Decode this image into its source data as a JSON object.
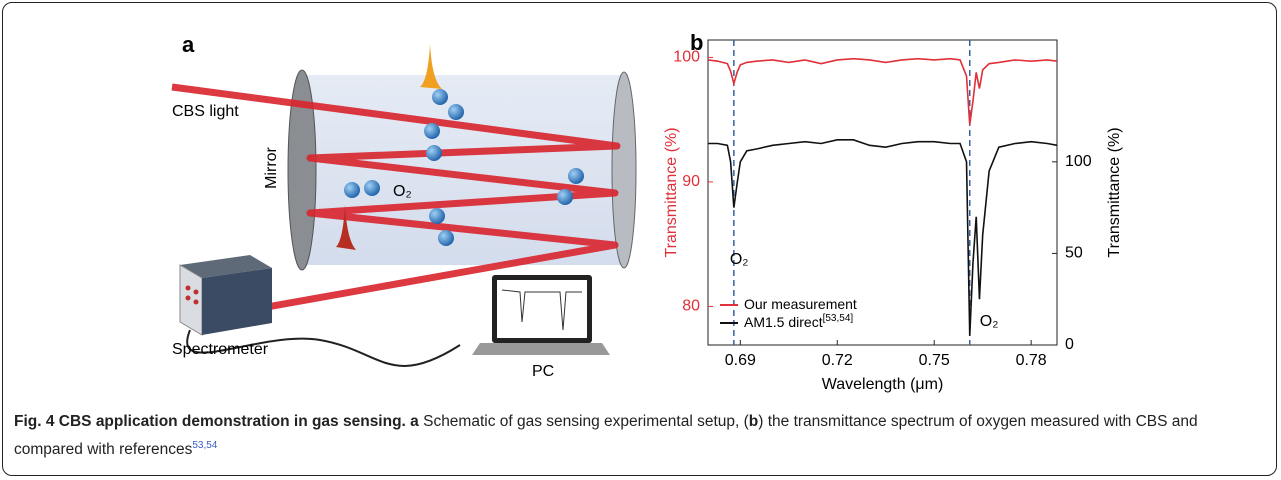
{
  "panel_a": {
    "label": "a",
    "cbs_light": "CBS light",
    "mirror": "Mirror",
    "molecule": "O₂",
    "spectrometer": "Spectrometer",
    "pc": "PC"
  },
  "chart_data": {
    "type": "line",
    "panel_label": "b",
    "x_label": "Wavelength (μm)",
    "y_label": "Transmittance (%)",
    "y2_label": "Transmittance (%)",
    "x": [
      0.68,
      0.683,
      0.686,
      0.687,
      0.688,
      0.689,
      0.69,
      0.692,
      0.695,
      0.7,
      0.705,
      0.71,
      0.715,
      0.72,
      0.725,
      0.73,
      0.735,
      0.74,
      0.745,
      0.75,
      0.755,
      0.758,
      0.76,
      0.761,
      0.762,
      0.763,
      0.764,
      0.765,
      0.767,
      0.77,
      0.775,
      0.78,
      0.785,
      0.788
    ],
    "series": [
      {
        "name": "Our measurement",
        "color": "#e0303a",
        "axis": "y",
        "values": [
          99.8,
          99.7,
          99.5,
          98.9,
          97.9,
          98.8,
          99.4,
          99.6,
          99.7,
          99.8,
          99.6,
          99.8,
          99.5,
          99.8,
          99.9,
          99.8,
          99.6,
          99.8,
          99.9,
          99.8,
          99.9,
          99.8,
          98.5,
          94.6,
          96.5,
          98.8,
          97.5,
          99.0,
          99.5,
          99.6,
          99.8,
          99.7,
          99.8,
          99.7
        ]
      },
      {
        "name": "AM1.5 direct",
        "name_superscript": "[53,54]",
        "color": "#111111",
        "axis": "y2",
        "values": [
          110,
          110,
          109,
          100,
          75,
          88,
          100,
          106,
          107,
          109,
          110,
          111,
          110,
          112,
          112,
          109,
          108,
          110,
          111,
          111,
          110,
          110,
          100,
          5,
          45,
          70,
          25,
          60,
          95,
          108,
          110,
          111,
          110,
          109
        ]
      }
    ],
    "xlim": [
      0.68,
      0.788
    ],
    "xticks": [
      0.69,
      0.72,
      0.75,
      0.78
    ],
    "ylim": [
      76.9,
      101.4
    ],
    "yticks": [
      80,
      90,
      100
    ],
    "y_color": "#e0303a",
    "y2lim": [
      0,
      166.5
    ],
    "y2ticks": [
      0,
      50,
      100
    ],
    "vlines": [
      0.688,
      0.761
    ],
    "vline_color": "#3a5f9a",
    "annotations": [
      "O₂",
      "O₂"
    ],
    "legend": "lower left"
  },
  "caption": {
    "title": "Fig. 4 CBS application demonstration in gas sensing.",
    "label_a": "a",
    "text_a": " Schematic of gas sensing experimental setup, (",
    "label_b": "b",
    "text_b": ") the transmittance spectrum of oxygen measured with CBS and compared with references",
    "refs": "53,54"
  }
}
